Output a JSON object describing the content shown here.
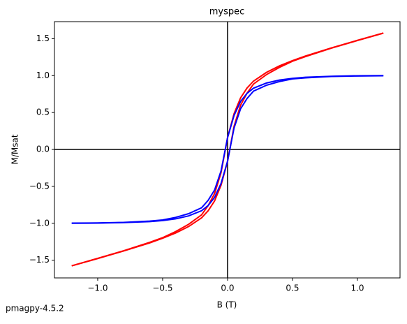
{
  "chart_data": {
    "type": "line",
    "title": "myspec",
    "x_label": "B (T)",
    "y_label": "M/Msat",
    "x": [
      -1.2,
      -1.0,
      -0.8,
      -0.6,
      -0.5,
      -0.4,
      -0.3,
      -0.2,
      -0.15,
      -0.1,
      -0.05,
      0,
      0.05,
      0.1,
      0.15,
      0.2,
      0.3,
      0.4,
      0.5,
      0.6,
      0.8,
      1.0,
      1.2
    ],
    "series": [
      {
        "color": "#ff0000",
        "values": [
          -1.576,
          -1.475,
          -1.372,
          -1.258,
          -1.195,
          -1.112,
          -1.014,
          -0.886,
          -0.762,
          -0.598,
          -0.314,
          0.16,
          0.484,
          0.698,
          0.832,
          0.926,
          1.044,
          1.132,
          1.203,
          1.266,
          1.375,
          1.478,
          1.576
        ]
      },
      {
        "color": "#ff0000",
        "values": [
          -1.576,
          -1.478,
          -1.375,
          -1.266,
          -1.203,
          -1.132,
          -1.044,
          -0.926,
          -0.832,
          -0.698,
          -0.484,
          -0.16,
          0.314,
          0.598,
          0.762,
          0.886,
          1.014,
          1.112,
          1.195,
          1.258,
          1.372,
          1.475,
          1.576
        ]
      },
      {
        "color": "#0000ff",
        "values": [
          -0.998,
          -0.995,
          -0.988,
          -0.97,
          -0.955,
          -0.92,
          -0.87,
          -0.79,
          -0.69,
          -0.55,
          -0.29,
          0.16,
          0.46,
          0.65,
          0.76,
          0.83,
          0.9,
          0.94,
          0.963,
          0.978,
          0.991,
          0.998,
          1.0
        ]
      },
      {
        "color": "#0000ff",
        "values": [
          -1.0,
          -0.998,
          -0.991,
          -0.978,
          -0.963,
          -0.94,
          -0.9,
          -0.83,
          -0.76,
          -0.65,
          -0.46,
          -0.16,
          0.29,
          0.55,
          0.69,
          0.79,
          0.87,
          0.92,
          0.955,
          0.97,
          0.988,
          0.995,
          0.998
        ]
      }
    ],
    "xlim": [
      -1.333,
      1.328
    ],
    "ylim": [
      -1.74,
      1.731
    ],
    "xticks": [
      {
        "value": -1.0,
        "label": "−1.0"
      },
      {
        "value": -0.5,
        "label": "−0.5"
      },
      {
        "value": 0,
        "label": "0.0"
      },
      0.5,
      {
        "value": 1.0,
        "label": "1.0"
      }
    ],
    "yticks": [
      {
        "value": -1.5,
        "label": "−1.5"
      },
      {
        "value": -1.0,
        "label": "−1.0"
      },
      {
        "value": -0.5,
        "label": "−0.5"
      },
      {
        "value": 0,
        "label": "0.0"
      },
      0.5,
      {
        "value": 1.0,
        "label": "1.0"
      },
      1.5
    ],
    "hlines": [
      0
    ],
    "vlines": [
      0
    ],
    "grid": false
  },
  "footer": "pmagpy-4.5.2"
}
